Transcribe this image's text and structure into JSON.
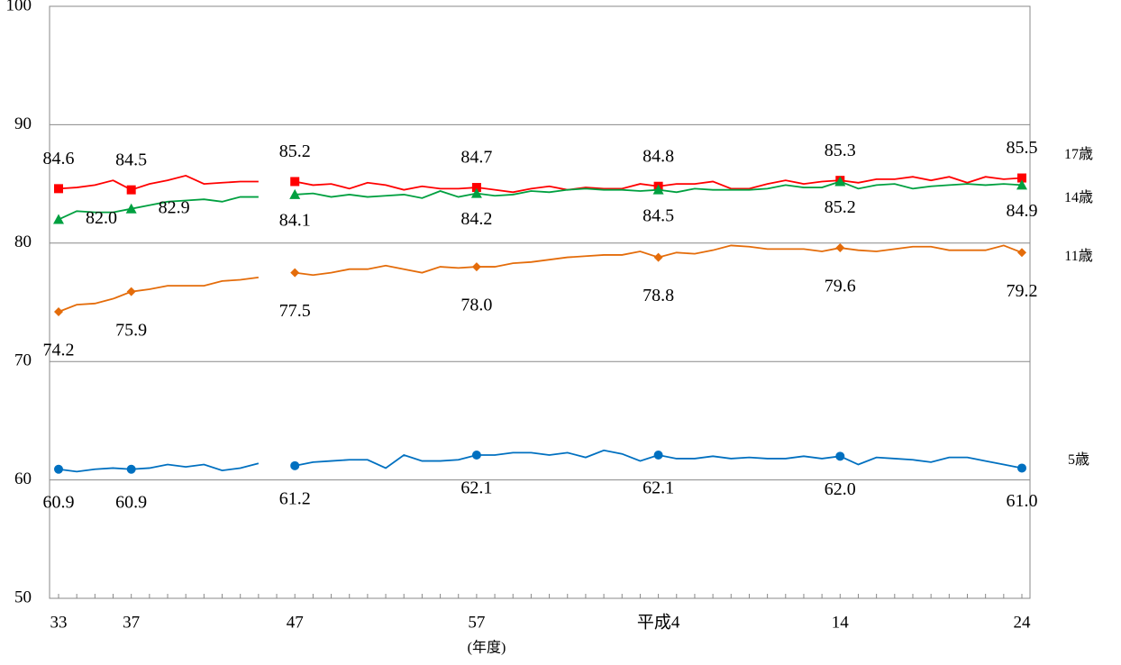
{
  "chart_data": {
    "type": "line",
    "x_label": "(年度)",
    "categories": [
      "33",
      null,
      null,
      null,
      "37",
      null,
      null,
      null,
      null,
      null,
      null,
      null,
      null,
      "47",
      null,
      null,
      null,
      null,
      null,
      null,
      null,
      null,
      null,
      "57",
      null,
      null,
      null,
      null,
      null,
      null,
      null,
      null,
      null,
      "平成4",
      null,
      null,
      null,
      null,
      null,
      null,
      null,
      null,
      null,
      "14",
      null,
      null,
      null,
      null,
      null,
      null,
      null,
      null,
      null,
      "24"
    ],
    "ylim": [
      50,
      100
    ],
    "yticks": [
      50,
      60,
      70,
      80,
      90,
      100
    ],
    "grid": true,
    "series": [
      {
        "name": "17歳",
        "color": "#ff0000",
        "marker": "square",
        "values": [
          84.6,
          84.7,
          84.9,
          85.3,
          84.5,
          85.0,
          85.3,
          85.7,
          85.0,
          85.1,
          85.2,
          85.2,
          null,
          85.2,
          84.9,
          85.0,
          84.6,
          85.1,
          84.9,
          84.5,
          84.8,
          84.6,
          84.6,
          84.7,
          84.5,
          84.3,
          84.6,
          84.8,
          84.5,
          84.7,
          84.6,
          84.6,
          85.0,
          84.8,
          85.0,
          85.0,
          85.2,
          84.6,
          84.6,
          85.0,
          85.3,
          85.0,
          85.2,
          85.3,
          85.1,
          85.4,
          85.4,
          85.6,
          85.3,
          85.6,
          85.1,
          85.6,
          85.4,
          85.5
        ]
      },
      {
        "name": "14歳",
        "color": "#00a040",
        "marker": "triangle",
        "values": [
          82.0,
          82.7,
          82.6,
          82.6,
          82.9,
          83.2,
          83.5,
          83.6,
          83.7,
          83.5,
          83.9,
          83.9,
          null,
          84.1,
          84.2,
          83.9,
          84.1,
          83.9,
          84.0,
          84.1,
          83.8,
          84.4,
          83.9,
          84.2,
          84.0,
          84.1,
          84.4,
          84.3,
          84.5,
          84.6,
          84.5,
          84.5,
          84.4,
          84.5,
          84.3,
          84.6,
          84.5,
          84.5,
          84.5,
          84.6,
          84.9,
          84.7,
          84.7,
          85.2,
          84.6,
          84.9,
          85.0,
          84.6,
          84.8,
          84.9,
          85.0,
          84.9,
          85.0,
          84.9
        ]
      },
      {
        "name": "11歳",
        "color": "#e46c0a",
        "marker": "diamond",
        "values": [
          74.2,
          74.8,
          74.9,
          75.3,
          75.9,
          76.1,
          76.4,
          76.4,
          76.4,
          76.8,
          76.9,
          77.1,
          null,
          77.5,
          77.3,
          77.5,
          77.8,
          77.8,
          78.1,
          77.8,
          77.5,
          78.0,
          77.9,
          78.0,
          78.0,
          78.3,
          78.4,
          78.6,
          78.8,
          78.9,
          79.0,
          79.0,
          79.3,
          78.8,
          79.2,
          79.1,
          79.4,
          79.8,
          79.7,
          79.5,
          79.5,
          79.5,
          79.3,
          79.6,
          79.4,
          79.3,
          79.5,
          79.7,
          79.7,
          79.4,
          79.4,
          79.4,
          79.8,
          79.2
        ]
      },
      {
        "name": "5歳",
        "color": "#0070c0",
        "marker": "circle",
        "values": [
          60.9,
          60.7,
          60.9,
          61.0,
          60.9,
          61.0,
          61.3,
          61.1,
          61.3,
          60.8,
          61.0,
          61.4,
          null,
          61.2,
          61.5,
          61.6,
          61.7,
          61.7,
          61.0,
          62.1,
          61.6,
          61.6,
          61.7,
          62.1,
          62.1,
          62.3,
          62.3,
          62.1,
          62.3,
          61.9,
          62.5,
          62.2,
          61.6,
          62.1,
          61.8,
          61.8,
          62.0,
          61.8,
          61.9,
          61.8,
          61.8,
          62.0,
          61.8,
          62.0,
          61.3,
          61.9,
          61.8,
          61.7,
          61.5,
          61.9,
          61.9,
          61.6,
          61.3,
          61.0
        ]
      }
    ]
  }
}
